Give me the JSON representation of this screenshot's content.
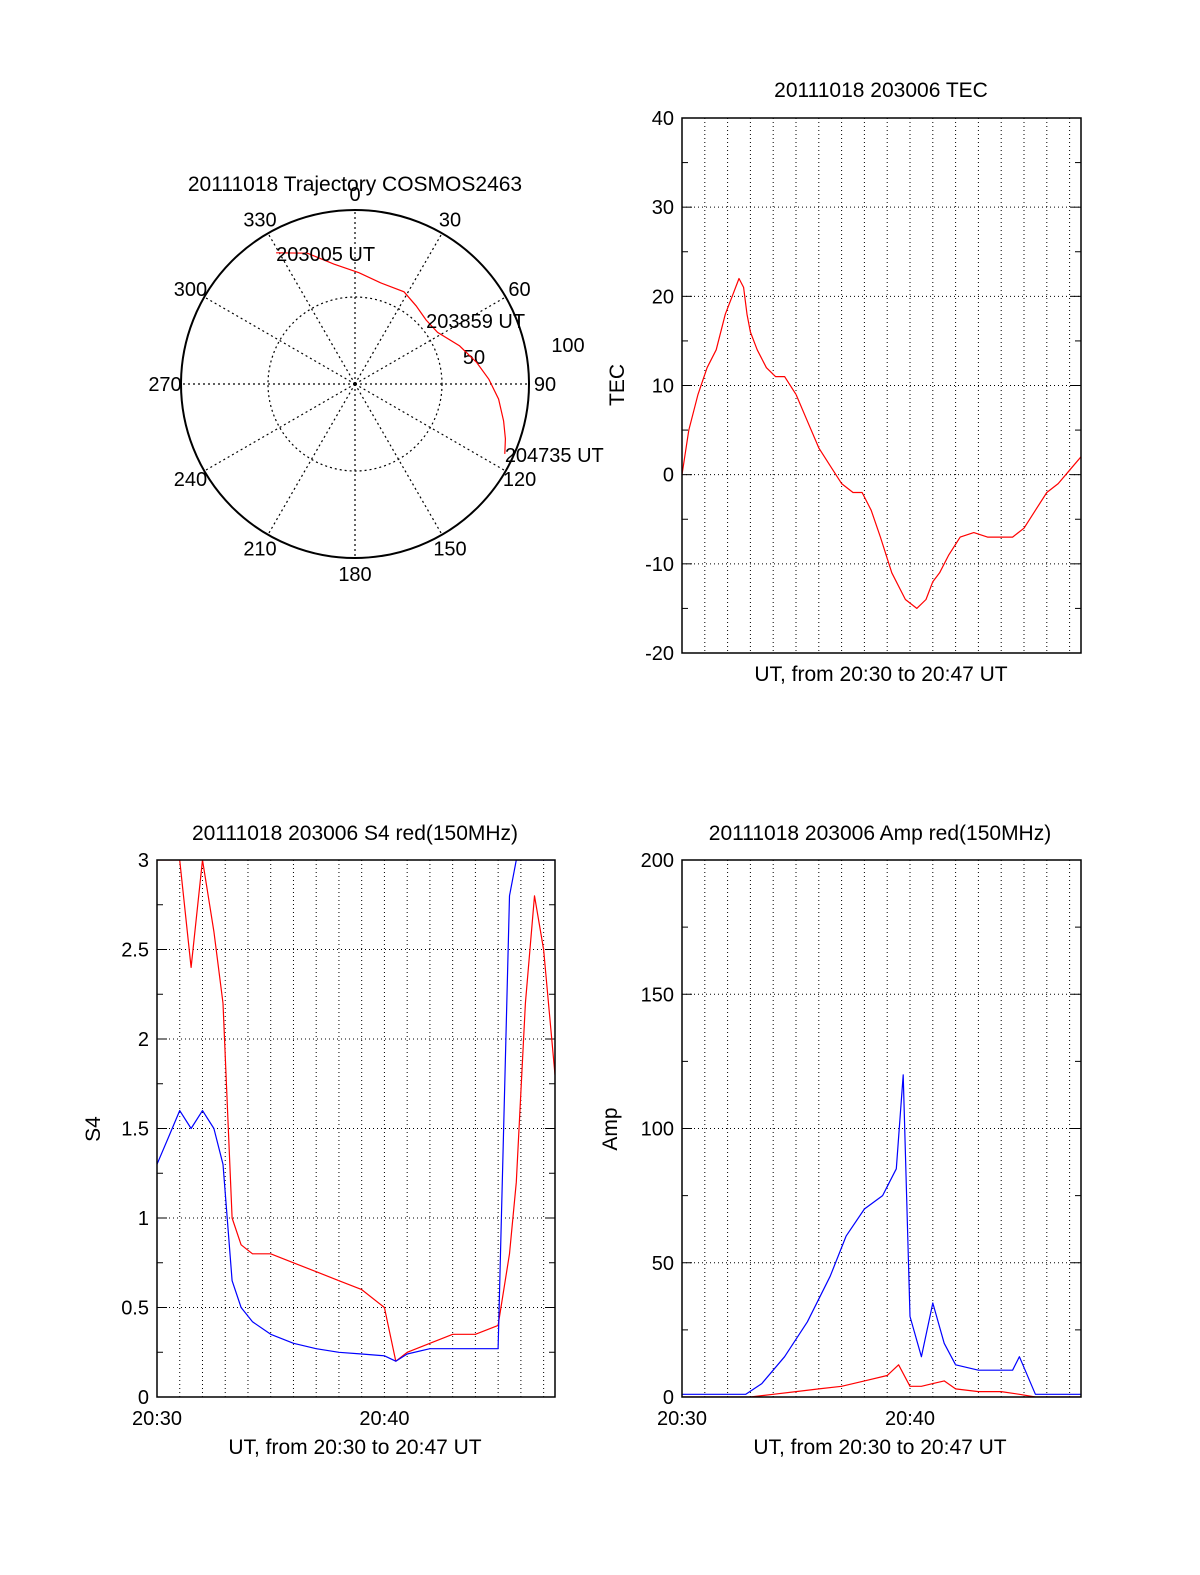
{
  "chart_data": [
    {
      "type": "polar-trajectory",
      "title": "20111018 Trajectory COSMOS2463",
      "angle_labels": [
        "0",
        "30",
        "60",
        "90",
        "120",
        "150",
        "180",
        "210",
        "240",
        "270",
        "300",
        "330"
      ],
      "radius_labels": [
        "50",
        "100"
      ],
      "trajectory": {
        "color": "#ff0000",
        "points": [
          [
            329,
            88
          ],
          [
            340,
            80
          ],
          [
            350,
            70
          ],
          [
            2,
            64
          ],
          [
            14,
            60
          ],
          [
            28,
            60
          ],
          [
            38,
            57
          ],
          [
            48,
            55
          ],
          [
            58,
            56
          ],
          [
            70,
            64
          ],
          [
            80,
            71
          ],
          [
            88,
            77
          ],
          [
            96,
            83
          ],
          [
            104,
            88
          ],
          [
            110,
            92
          ],
          [
            115,
            95
          ]
        ],
        "annotations": [
          {
            "text": "203005 UT",
            "az": 329,
            "r": 88
          },
          {
            "text": "203859 UT",
            "az": 48,
            "r": 55
          },
          {
            "text": "204735 UT",
            "az": 115,
            "r": 95
          }
        ]
      }
    },
    {
      "type": "line",
      "title": "20111018 203006 TEC",
      "xlabel": "UT, from 20:30 to 20:47 UT",
      "ylabel": "TEC",
      "xlim": [
        0,
        17.5
      ],
      "ylim": [
        -20,
        40
      ],
      "yticks": [
        "40",
        "30",
        "20",
        "10",
        "0",
        "-10",
        "-20"
      ],
      "grid": true,
      "series": [
        {
          "color": "#ff0000",
          "x": [
            0,
            0.3,
            0.7,
            1.1,
            1.5,
            1.9,
            2.2,
            2.5,
            2.7,
            2.85,
            3.0,
            3.3,
            3.7,
            4.1,
            4.5,
            5.0,
            5.5,
            6.0,
            6.5,
            7.0,
            7.5,
            7.9,
            8.3,
            8.7,
            9.2,
            9.8,
            10.3,
            10.7,
            11.0,
            11.3,
            11.7,
            12.2,
            12.8,
            13.4,
            14.0,
            14.5,
            15.0,
            15.5,
            16.0,
            16.5,
            17.0,
            17.5
          ],
          "y": [
            0,
            5,
            9,
            12,
            14,
            18,
            20,
            22,
            21,
            18,
            16,
            14,
            12,
            11,
            11,
            9,
            6,
            3,
            1,
            -1,
            -2,
            -2,
            -4,
            -7,
            -11,
            -14,
            -15,
            -14,
            -12,
            -11,
            -9,
            -7,
            -6.5,
            -7,
            -7,
            -7,
            -6,
            -4,
            -2,
            -1,
            0.5,
            2
          ]
        }
      ]
    },
    {
      "type": "line",
      "title": "20111018 203006 S4 red(150MHz)",
      "xlabel": "UT, from 20:30 to 20:47 UT",
      "ylabel": "S4",
      "xlim": [
        0,
        17.5
      ],
      "ylim": [
        0,
        3
      ],
      "yticks": [
        "3",
        "2.5",
        "2",
        "1.5",
        "1",
        "0.5",
        "0"
      ],
      "xticks": [
        {
          "value": 0,
          "label": "20:30"
        },
        {
          "value": 10,
          "label": "20:40"
        }
      ],
      "grid": true,
      "series": [
        {
          "color": "#ff0000",
          "x": [
            0,
            0.5,
            1.0,
            1.5,
            2.0,
            2.5,
            2.9,
            3.3,
            3.7,
            4.2,
            5,
            6,
            7,
            8,
            9,
            10,
            10.5,
            11,
            12,
            13,
            14,
            15,
            15.5,
            15.8,
            16.2,
            16.6,
            17,
            17.5
          ],
          "y": [
            3,
            3,
            3,
            2.4,
            3,
            2.6,
            2.2,
            1.0,
            0.85,
            0.8,
            0.8,
            0.75,
            0.7,
            0.65,
            0.6,
            0.5,
            0.2,
            0.25,
            0.3,
            0.35,
            0.35,
            0.4,
            0.8,
            1.2,
            2.2,
            2.8,
            2.5,
            1.8
          ]
        },
        {
          "color": "#0000ff",
          "x": [
            0,
            0.5,
            1.0,
            1.5,
            2.0,
            2.5,
            2.9,
            3.3,
            3.7,
            4.2,
            5,
            6,
            7,
            8,
            9,
            10,
            10.5,
            11,
            12,
            13,
            14,
            15,
            15.5,
            15.8,
            16.2,
            16.6,
            17,
            17.5
          ],
          "y": [
            1.3,
            1.45,
            1.6,
            1.5,
            1.6,
            1.5,
            1.3,
            0.65,
            0.5,
            0.42,
            0.35,
            0.3,
            0.27,
            0.25,
            0.24,
            0.23,
            0.2,
            0.24,
            0.27,
            0.27,
            0.27,
            0.27,
            2.8,
            3,
            3,
            3,
            3,
            3
          ]
        }
      ]
    },
    {
      "type": "line",
      "title": "20111018 203006 Amp red(150MHz)",
      "xlabel": "UT, from 20:30 to 20:47 UT",
      "ylabel": "Amp",
      "xlim": [
        0,
        17.5
      ],
      "ylim": [
        0,
        200
      ],
      "yticks": [
        "200",
        "150",
        "100",
        "50",
        "0"
      ],
      "xticks": [
        {
          "value": 0,
          "label": "20:30"
        },
        {
          "value": 10,
          "label": "20:40"
        }
      ],
      "grid": true,
      "series": [
        {
          "color": "#0000ff",
          "x": [
            0,
            2,
            2.8,
            3.5,
            4.5,
            5.5,
            6.5,
            7.2,
            8,
            8.8,
            9.4,
            9.7,
            10.0,
            10.5,
            11,
            11.5,
            12,
            13,
            14,
            14.5,
            14.8,
            15.5,
            17.5
          ],
          "y": [
            1,
            1,
            1,
            5,
            15,
            28,
            45,
            60,
            70,
            75,
            85,
            120,
            30,
            15,
            35,
            20,
            12,
            10,
            10,
            10,
            15,
            1,
            1
          ]
        },
        {
          "color": "#ff0000",
          "x": [
            0,
            3,
            4,
            5,
            6,
            7,
            8,
            9,
            9.5,
            10,
            10.5,
            11,
            11.5,
            12,
            13,
            14,
            14.8,
            15.5,
            17.5
          ],
          "y": [
            0,
            0,
            1,
            2,
            3,
            4,
            6,
            8,
            12,
            4,
            4,
            5,
            6,
            3,
            2,
            2,
            1,
            0,
            0
          ]
        }
      ]
    }
  ]
}
